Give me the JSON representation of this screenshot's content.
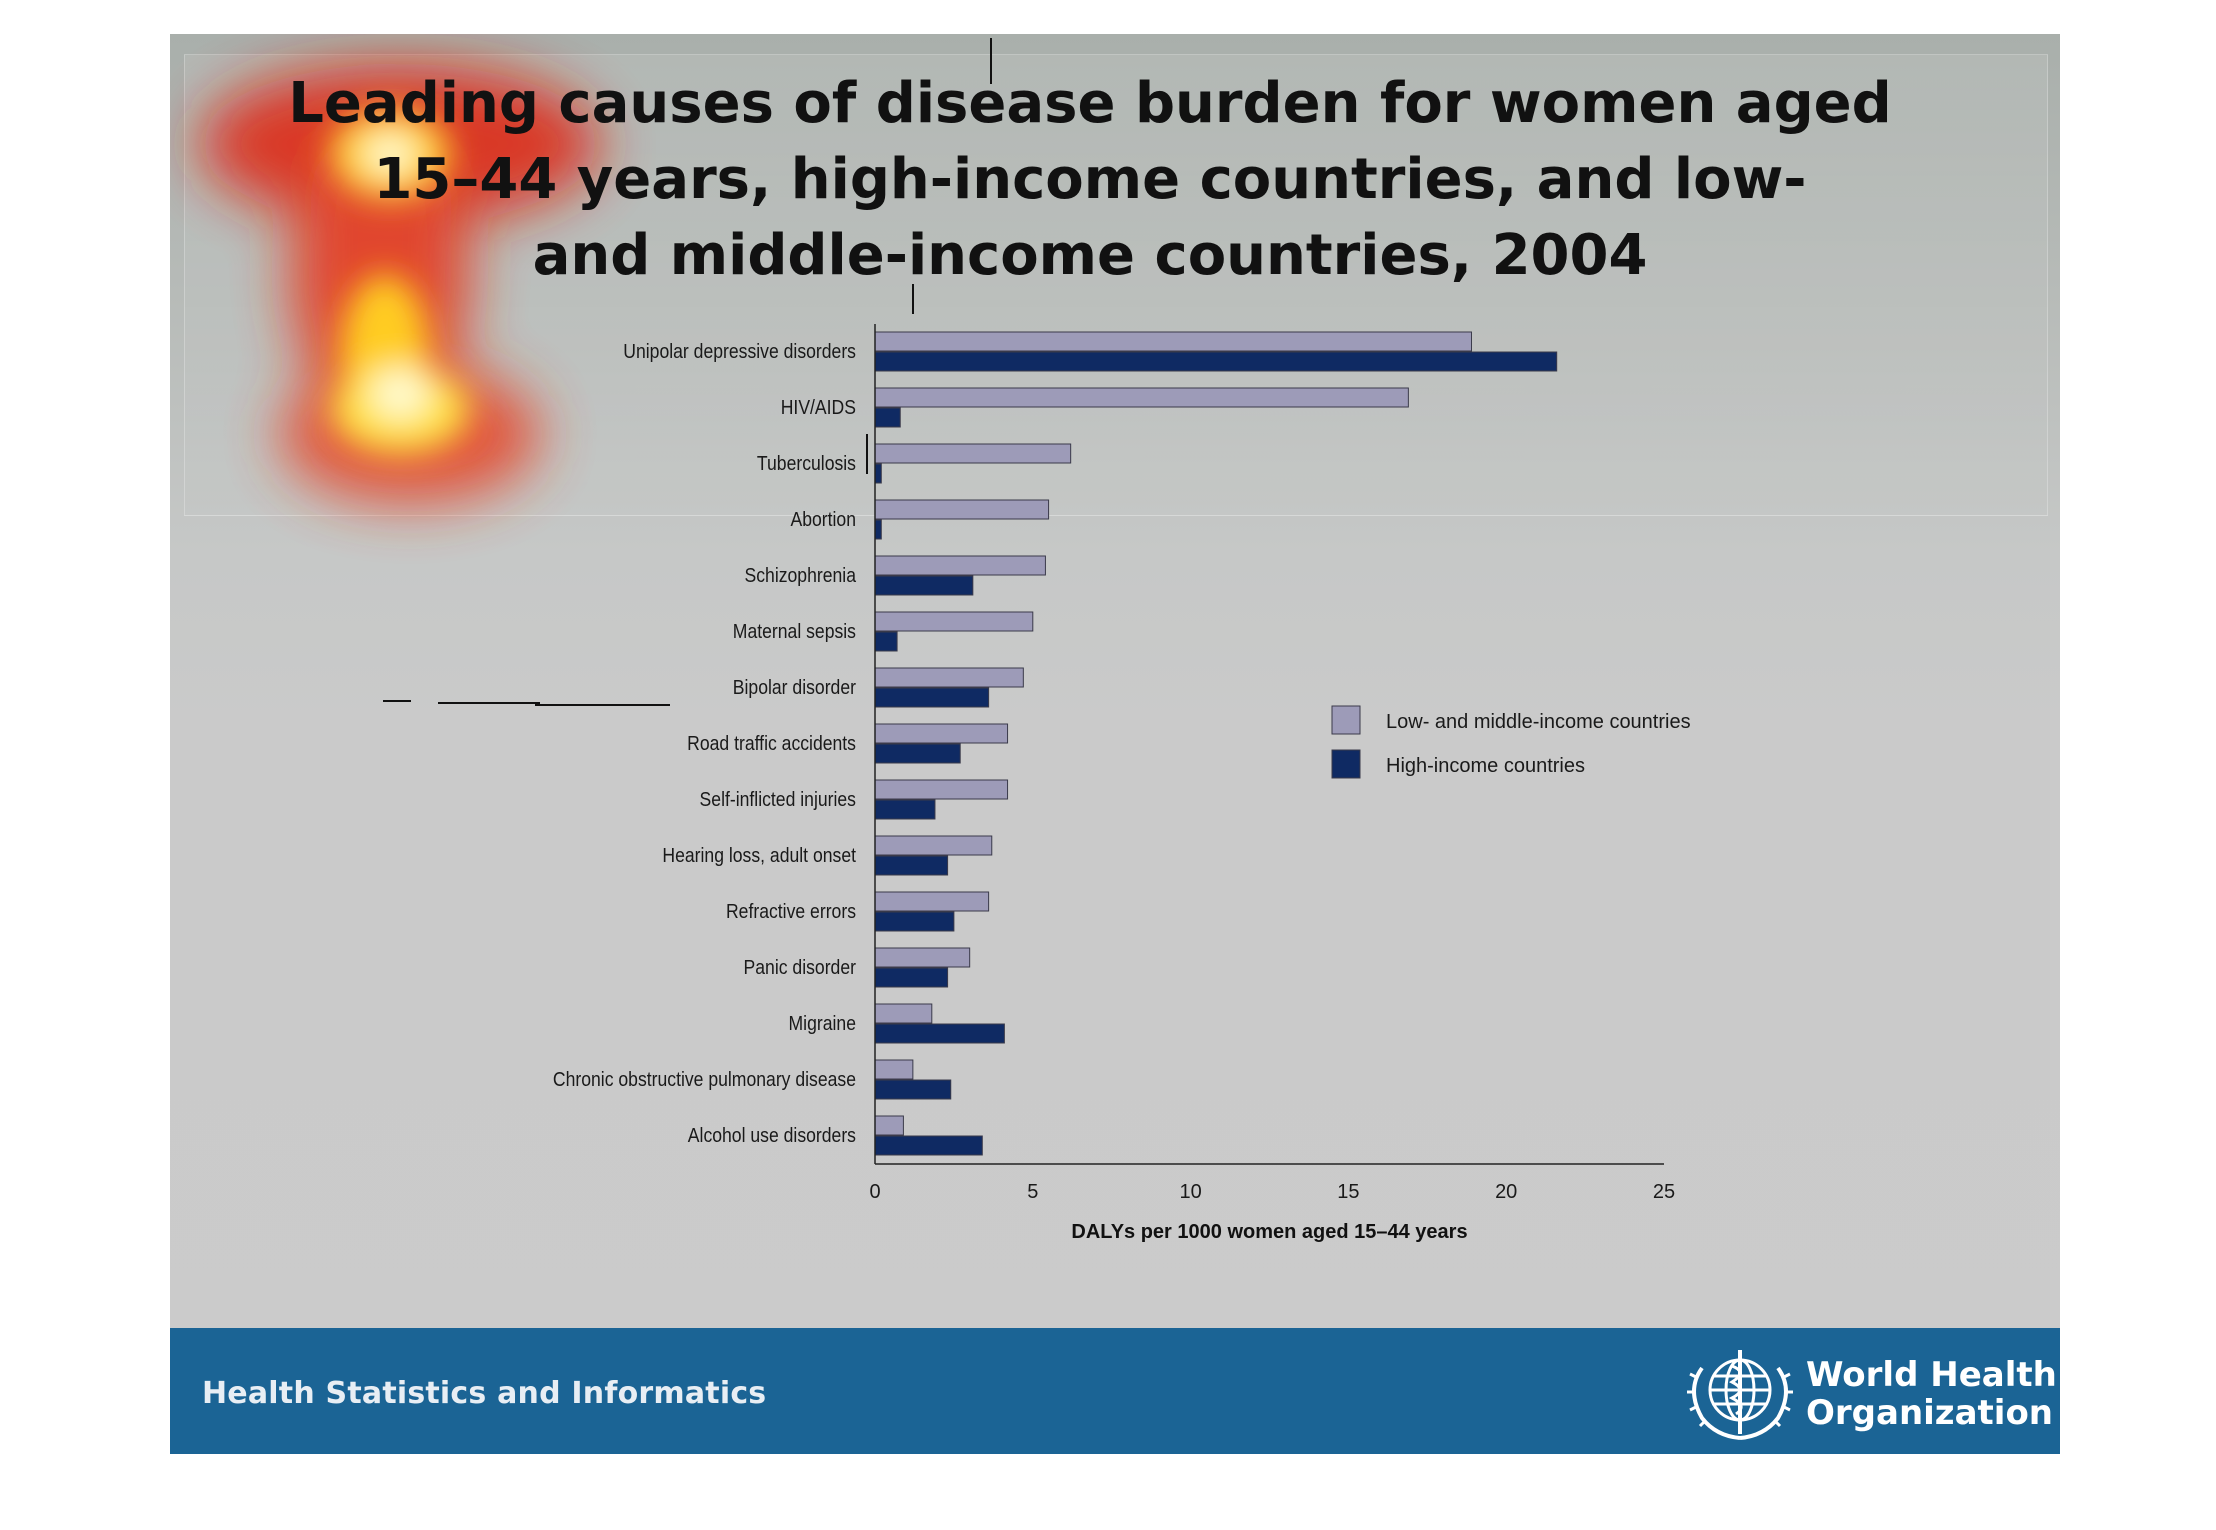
{
  "title_lines": [
    "Leading causes of disease burden for women aged",
    "15–44 years, high-income countries, and low-",
    "and middle-income countries, 2004"
  ],
  "footer": {
    "text": "Health Statistics and Informatics",
    "org_line1": "World Health",
    "org_line2": "Organization"
  },
  "colors": {
    "low_middle": "#9d9bb8",
    "high": "#0f2a63",
    "footer_bg": "#1b6495"
  },
  "chart_data": {
    "type": "bar",
    "orientation": "horizontal",
    "title": "Leading causes of disease burden for women aged 15–44 years, high-income countries, and low- and middle-income countries, 2004",
    "xlabel": "DALYs per 1000 women aged 15–44 years",
    "ylabel": "",
    "xlim": [
      0,
      25
    ],
    "xticks": [
      0,
      5,
      10,
      15,
      20,
      25
    ],
    "grid": false,
    "legend_position": "right",
    "categories": [
      "Unipolar depressive disorders",
      "HIV/AIDS",
      "Tuberculosis",
      "Abortion",
      "Schizophrenia",
      "Maternal sepsis",
      "Bipolar disorder",
      "Road traffic accidents",
      "Self-inflicted injuries",
      "Hearing loss, adult onset",
      "Refractive errors",
      "Panic disorder",
      "Migraine",
      "Chronic obstructive pulmonary disease",
      "Alcohol use disorders"
    ],
    "series": [
      {
        "name": "Low- and middle-income countries",
        "values": [
          18.9,
          16.9,
          6.2,
          5.5,
          5.4,
          5.0,
          4.7,
          4.2,
          4.2,
          3.7,
          3.6,
          3.0,
          1.8,
          1.2,
          0.9
        ]
      },
      {
        "name": "High-income countries",
        "values": [
          21.6,
          0.8,
          0.2,
          0.2,
          3.1,
          0.7,
          3.6,
          2.7,
          1.9,
          2.3,
          2.5,
          2.3,
          4.1,
          2.4,
          3.4
        ]
      }
    ]
  }
}
